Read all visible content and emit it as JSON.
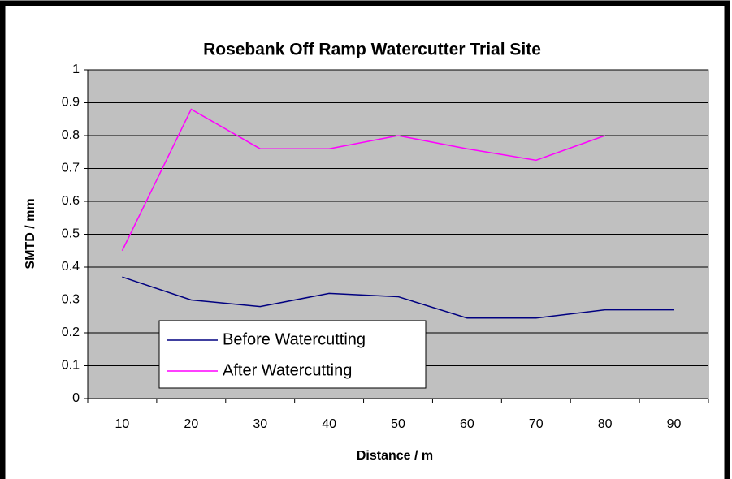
{
  "chart_data": {
    "type": "line",
    "title": "Rosebank Off Ramp Watercutter Trial Site",
    "xlabel": "Distance / m",
    "ylabel": "SMTD / mm",
    "categories": [
      "10",
      "20",
      "30",
      "40",
      "50",
      "60",
      "70",
      "80",
      "90"
    ],
    "series": [
      {
        "name": "Before Watercutting",
        "color": "#000080",
        "values": [
          0.37,
          0.3,
          0.28,
          0.32,
          0.31,
          0.245,
          0.245,
          0.27,
          0.27
        ]
      },
      {
        "name": "After Watercutting",
        "color": "#ff00ff",
        "values": [
          0.45,
          0.88,
          0.76,
          0.76,
          0.8,
          0.76,
          0.725,
          0.8,
          null
        ]
      }
    ],
    "ylim": [
      0,
      1
    ],
    "yticks": [
      0,
      0.1,
      0.2,
      0.3,
      0.4,
      0.5,
      0.6,
      0.7,
      0.8,
      0.9,
      1
    ],
    "grid": true,
    "legend": "lower left",
    "plot_background": "#c0c0c0"
  }
}
